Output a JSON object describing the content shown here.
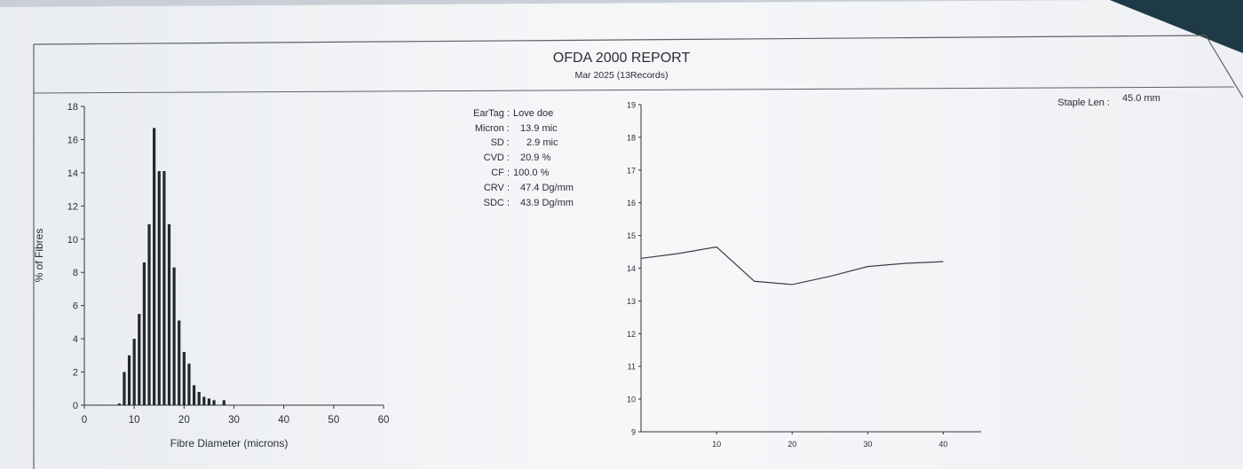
{
  "report": {
    "title": "OFDA 2000 REPORT",
    "subtitle": "Mar 2025 (13Records)"
  },
  "stats": [
    {
      "label": "EarTag :",
      "value": "Love  doe"
    },
    {
      "label": "Micron :",
      "value": "13.9 mic"
    },
    {
      "label": "SD :",
      "value": "2.9 mic"
    },
    {
      "label": "CVD :",
      "value": "20.9 %"
    },
    {
      "label": "CF :",
      "value": "100.0 %"
    },
    {
      "label": "CRV :",
      "value": "47.4 Dg/mm"
    },
    {
      "label": "SDC :",
      "value": "43.9 Dg/mm"
    }
  ],
  "staple": {
    "label": "Staple Len :",
    "value": "45.0 mm"
  },
  "colors": {
    "paper": "#f4f5f8",
    "ink": "#2a2d33",
    "background": "#c9cfd6",
    "corner": "#1d3a46"
  },
  "chart_data": [
    {
      "type": "bar",
      "xlabel": "Fibre Diameter (microns)",
      "ylabel": "% of Fibres",
      "xlim": [
        0,
        60
      ],
      "ylim": [
        0,
        18
      ],
      "xticks": [
        0,
        10,
        20,
        30,
        40,
        50,
        60
      ],
      "yticks": [
        0,
        2,
        4,
        6,
        8,
        10,
        12,
        14,
        16,
        18
      ],
      "x": [
        7,
        8,
        9,
        10,
        11,
        12,
        13,
        14,
        15,
        16,
        17,
        18,
        19,
        20,
        21,
        22,
        23,
        24,
        25,
        26,
        28
      ],
      "values": [
        0.1,
        2.0,
        3.0,
        4.0,
        5.5,
        8.6,
        10.9,
        16.7,
        14.1,
        14.1,
        10.9,
        8.3,
        5.1,
        3.2,
        2.5,
        1.2,
        0.8,
        0.5,
        0.4,
        0.3,
        0.3
      ],
      "grid": false
    },
    {
      "type": "line",
      "xlabel": "",
      "ylabel": "",
      "xlim": [
        0,
        45
      ],
      "ylim": [
        9,
        19
      ],
      "xticks": [
        10,
        20,
        30,
        40
      ],
      "yticks": [
        9,
        10,
        11,
        12,
        13,
        14,
        15,
        16,
        17,
        18,
        19
      ],
      "x": [
        0,
        5,
        10,
        15,
        20,
        25,
        30,
        35,
        40
      ],
      "y": [
        14.3,
        14.45,
        14.65,
        13.6,
        13.5,
        13.75,
        14.05,
        14.15,
        14.2
      ],
      "grid": false
    }
  ]
}
